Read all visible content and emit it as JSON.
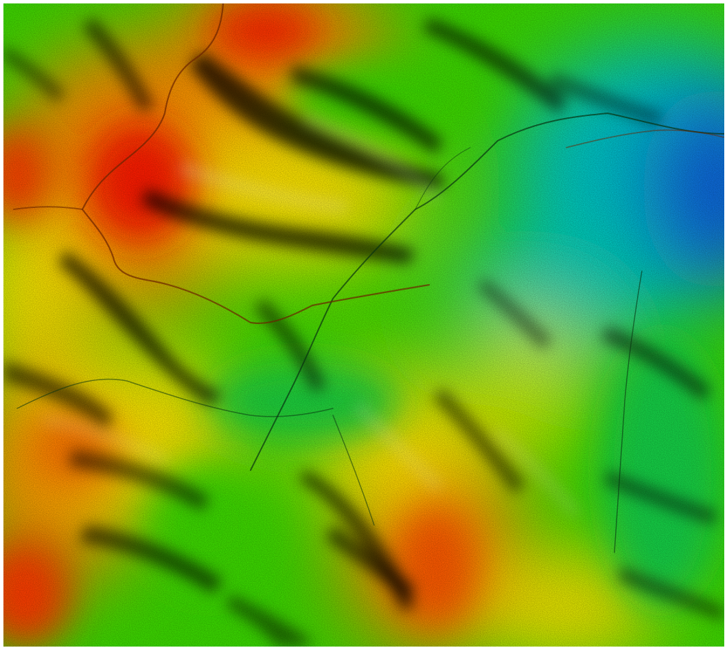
{
  "map": {
    "kind": "shaded-relief-elevation",
    "labels": [],
    "colormap": {
      "highest": "#ff1a00",
      "high": "#ff8c00",
      "upper_mid": "#ffe600",
      "mid": "#3cdc00",
      "lower_mid": "#00d25a",
      "low": "#00c8c8",
      "lowest": "#0a64dc"
    },
    "shadow_color": "#000000",
    "background": "#ffffff"
  }
}
